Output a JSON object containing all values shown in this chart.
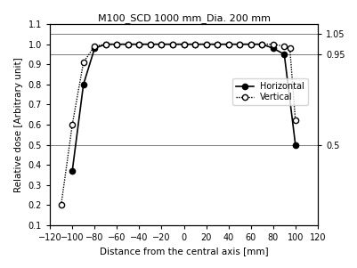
{
  "title": "M100_SCD 1000 mm_Dia. 200 mm",
  "xlabel": "Distance from the central axis [mm]",
  "ylabel": "Relative dose [Arbitrary unit]",
  "xlim": [
    -120,
    120
  ],
  "ylim": [
    0.1,
    1.1
  ],
  "right_yticks": [
    0.5,
    0.95,
    1.05
  ],
  "horizontal_x": [
    -100,
    -90,
    -80,
    -70,
    -60,
    -50,
    -40,
    -30,
    -20,
    -10,
    0,
    10,
    20,
    30,
    40,
    50,
    60,
    70,
    80,
    90,
    100
  ],
  "horizontal_y": [
    0.37,
    0.8,
    0.98,
    1.0,
    1.0,
    1.0,
    1.0,
    1.0,
    1.0,
    1.0,
    1.0,
    1.0,
    1.0,
    1.0,
    1.0,
    1.0,
    1.0,
    1.0,
    0.98,
    0.95,
    0.5
  ],
  "vertical_x": [
    -110,
    -100,
    -90,
    -80,
    -70,
    -60,
    -50,
    -40,
    -30,
    -20,
    -10,
    0,
    10,
    20,
    30,
    40,
    50,
    60,
    70,
    80,
    90,
    95,
    100
  ],
  "vertical_y": [
    0.2,
    0.6,
    0.91,
    0.99,
    1.0,
    1.0,
    1.0,
    1.0,
    1.0,
    1.0,
    1.0,
    1.0,
    1.0,
    1.0,
    1.0,
    1.0,
    1.0,
    1.0,
    1.0,
    1.0,
    0.99,
    0.98,
    0.62
  ],
  "hline_y": [
    0.5,
    0.95,
    1.05
  ],
  "xticks": [
    -120,
    -100,
    -80,
    -60,
    -40,
    -20,
    0,
    20,
    40,
    60,
    80,
    100,
    120
  ],
  "yticks": [
    0.1,
    0.2,
    0.3,
    0.4,
    0.5,
    0.6,
    0.7,
    0.8,
    0.9,
    1.0,
    1.1
  ],
  "line_color": "black",
  "legend_labels": [
    "Horizontal",
    "Vertical"
  ]
}
